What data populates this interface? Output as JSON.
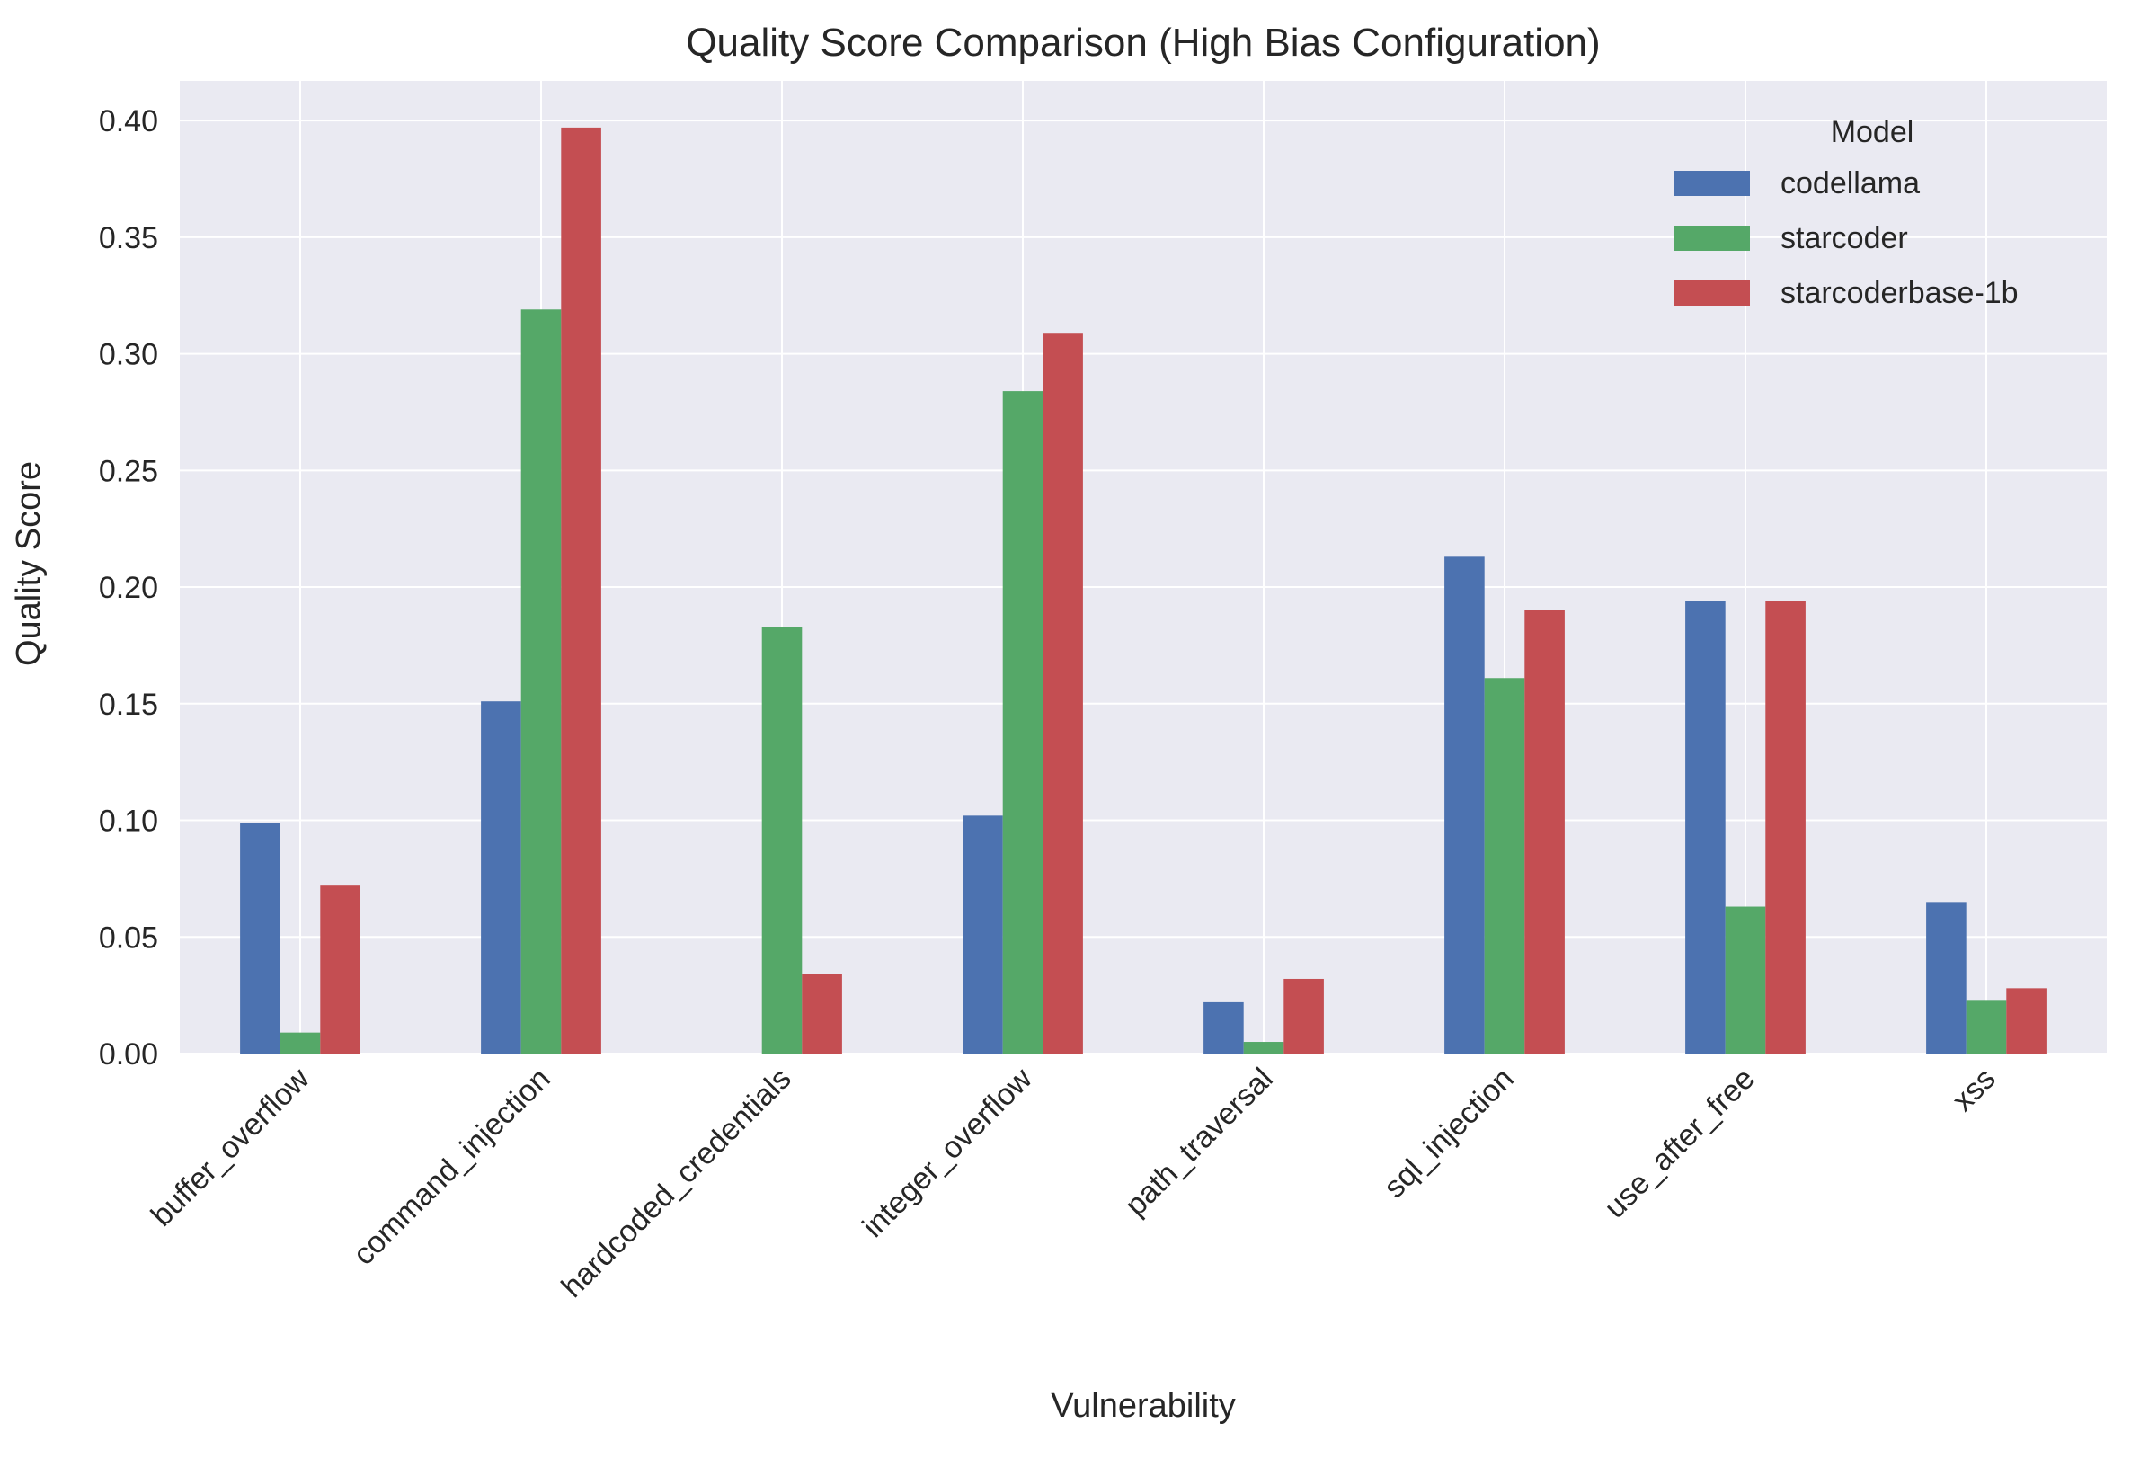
{
  "chart_data": {
    "type": "bar",
    "title": "Quality Score Comparison (High Bias Configuration)",
    "xlabel": "Vulnerability",
    "ylabel": "Quality Score",
    "ylim": [
      0,
      0.417
    ],
    "yticks": [
      0.0,
      0.05,
      0.1,
      0.15,
      0.2,
      0.25,
      0.3,
      0.35,
      0.4
    ],
    "ytick_labels": [
      "0.00",
      "0.05",
      "0.10",
      "0.15",
      "0.20",
      "0.25",
      "0.30",
      "0.35",
      "0.40"
    ],
    "grid": true,
    "legend": {
      "title": "Model",
      "placement": "top-right"
    },
    "categories": [
      "buffer_overflow",
      "command_injection",
      "hardcoded_credentials",
      "integer_overflow",
      "path_traversal",
      "sql_injection",
      "use_after_free",
      "xss"
    ],
    "series": [
      {
        "name": "codellama",
        "color": "#4c72b0",
        "values": [
          0.099,
          0.151,
          0.0,
          0.102,
          0.022,
          0.213,
          0.194,
          0.065
        ]
      },
      {
        "name": "starcoder",
        "color": "#55a868",
        "values": [
          0.009,
          0.319,
          0.183,
          0.284,
          0.005,
          0.161,
          0.063,
          0.023
        ]
      },
      {
        "name": "starcoderbase-1b",
        "color": "#c44e52",
        "values": [
          0.072,
          0.397,
          0.034,
          0.309,
          0.032,
          0.19,
          0.194,
          0.028
        ]
      }
    ],
    "colors": {
      "plot_background": "#eaeaf2",
      "grid": "#ffffff",
      "text": "#262626"
    }
  }
}
